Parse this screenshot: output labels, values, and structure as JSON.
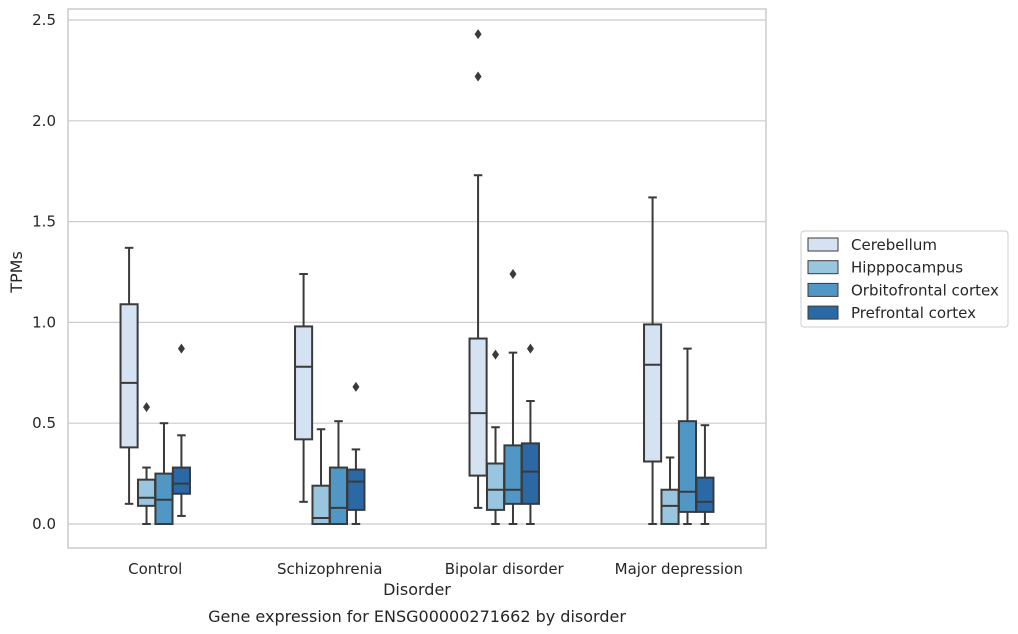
{
  "chart_data": {
    "type": "box",
    "xlabel": "Disorder",
    "ylabel": "TPMs",
    "caption": "Gene expression for ENSG00000271662 by disorder",
    "ylim": [
      -0.12,
      2.56
    ],
    "yticks": [
      0.0,
      0.5,
      1.0,
      1.5,
      2.0,
      2.5
    ],
    "ytick_labels": [
      "0.0",
      "0.5",
      "1.0",
      "1.5",
      "2.0",
      "2.5"
    ],
    "grid": "horizontal",
    "legend_position": "right",
    "categories": [
      "Control",
      "Schizophrenia",
      "Bipolar disorder",
      "Major depression"
    ],
    "series": [
      {
        "name": "Cerebellum",
        "color": "#d4e2f1",
        "boxes": [
          {
            "whislo": 0.1,
            "q1": 0.38,
            "med": 0.7,
            "q3": 1.09,
            "whishi": 1.37,
            "fliers": []
          },
          {
            "whislo": 0.11,
            "q1": 0.42,
            "med": 0.78,
            "q3": 0.98,
            "whishi": 1.24,
            "fliers": []
          },
          {
            "whislo": 0.08,
            "q1": 0.24,
            "med": 0.55,
            "q3": 0.92,
            "whishi": 1.73,
            "fliers": [
              2.22,
              2.43
            ]
          },
          {
            "whislo": 0.0,
            "q1": 0.31,
            "med": 0.79,
            "q3": 0.99,
            "whishi": 1.62,
            "fliers": []
          }
        ]
      },
      {
        "name": "Hipppocampus",
        "color": "#9ac5df",
        "boxes": [
          {
            "whislo": 0.0,
            "q1": 0.09,
            "med": 0.13,
            "q3": 0.22,
            "whishi": 0.28,
            "fliers": [
              0.58
            ]
          },
          {
            "whislo": 0.0,
            "q1": 0.0,
            "med": 0.03,
            "q3": 0.19,
            "whishi": 0.47,
            "fliers": []
          },
          {
            "whislo": 0.0,
            "q1": 0.07,
            "med": 0.17,
            "q3": 0.3,
            "whishi": 0.48,
            "fliers": [
              0.84
            ]
          },
          {
            "whislo": 0.0,
            "q1": 0.0,
            "med": 0.09,
            "q3": 0.17,
            "whishi": 0.33,
            "fliers": []
          }
        ]
      },
      {
        "name": "Orbitofrontal cortex",
        "color": "#5097c6",
        "boxes": [
          {
            "whislo": 0.0,
            "q1": 0.0,
            "med": 0.12,
            "q3": 0.25,
            "whishi": 0.5,
            "fliers": []
          },
          {
            "whislo": 0.0,
            "q1": 0.0,
            "med": 0.08,
            "q3": 0.28,
            "whishi": 0.51,
            "fliers": []
          },
          {
            "whislo": 0.0,
            "q1": 0.1,
            "med": 0.17,
            "q3": 0.39,
            "whishi": 0.85,
            "fliers": [
              1.24
            ]
          },
          {
            "whislo": 0.0,
            "q1": 0.06,
            "med": 0.16,
            "q3": 0.51,
            "whishi": 0.87,
            "fliers": []
          }
        ]
      },
      {
        "name": "Prefrontal cortex",
        "color": "#2a68a6",
        "boxes": [
          {
            "whislo": 0.04,
            "q1": 0.15,
            "med": 0.2,
            "q3": 0.28,
            "whishi": 0.44,
            "fliers": [
              0.87
            ]
          },
          {
            "whislo": 0.0,
            "q1": 0.07,
            "med": 0.21,
            "q3": 0.27,
            "whishi": 0.37,
            "fliers": [
              0.68
            ]
          },
          {
            "whislo": 0.0,
            "q1": 0.1,
            "med": 0.26,
            "q3": 0.4,
            "whishi": 0.61,
            "fliers": [
              0.87
            ]
          },
          {
            "whislo": 0.0,
            "q1": 0.06,
            "med": 0.11,
            "q3": 0.23,
            "whishi": 0.49,
            "fliers": []
          }
        ]
      }
    ]
  }
}
